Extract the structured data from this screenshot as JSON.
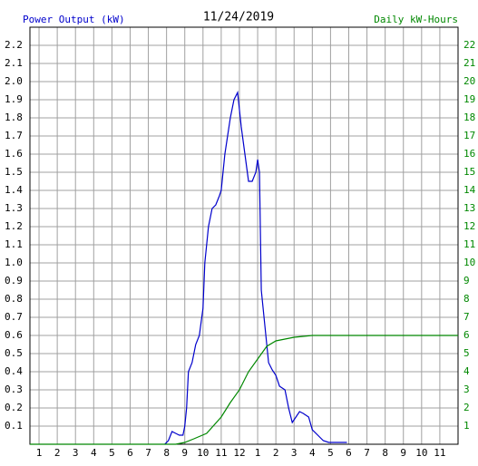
{
  "chart_data": {
    "type": "line",
    "title": "11/24/2019",
    "y_label": "Power Output (kW)",
    "y2_label": "Daily kW-Hours",
    "xlim": [
      0.5,
      24
    ],
    "xticks": [
      {
        "value": 1,
        "label": "1"
      },
      {
        "value": 2,
        "label": "2"
      },
      {
        "value": 3,
        "label": "3"
      },
      {
        "value": 4,
        "label": "4"
      },
      {
        "value": 5,
        "label": "5"
      },
      {
        "value": 6,
        "label": "6"
      },
      {
        "value": 7,
        "label": "7"
      },
      {
        "value": 8,
        "label": "8"
      },
      {
        "value": 9,
        "label": "9"
      },
      {
        "value": 10,
        "label": "10"
      },
      {
        "value": 11,
        "label": "11"
      },
      {
        "value": 12,
        "label": "12"
      },
      {
        "value": 13,
        "label": "1"
      },
      {
        "value": 14,
        "label": "2"
      },
      {
        "value": 15,
        "label": "3"
      },
      {
        "value": 16,
        "label": "4"
      },
      {
        "value": 17,
        "label": "5"
      },
      {
        "value": 18,
        "label": "6"
      },
      {
        "value": 19,
        "label": "7"
      },
      {
        "value": 20,
        "label": "8"
      },
      {
        "value": 21,
        "label": "9"
      },
      {
        "value": 22,
        "label": "10"
      },
      {
        "value": 23,
        "label": "11"
      }
    ],
    "ylim": [
      0,
      2.3
    ],
    "yticks": [
      0.1,
      0.2,
      0.3,
      0.4,
      0.5,
      0.6,
      0.7,
      0.8,
      0.9,
      {
        "value": 1,
        "label": "1.0"
      },
      1.1,
      1.2,
      1.3,
      1.4,
      1.5,
      1.6,
      1.7,
      1.8,
      1.9,
      {
        "value": 2,
        "label": "2.0"
      },
      2.1,
      2.2
    ],
    "y2lim": [
      0,
      23
    ],
    "y2ticks": [
      1,
      2,
      3,
      4,
      5,
      6,
      7,
      8,
      9,
      10,
      11,
      12,
      13,
      14,
      15,
      16,
      17,
      18,
      19,
      20,
      21,
      22
    ],
    "grid": true,
    "series": [
      {
        "name": "Power Output (kW)",
        "color": "#0000cc",
        "x": [
          7.9,
          8.1,
          8.3,
          8.5,
          8.7,
          8.9,
          9.0,
          9.1,
          9.2,
          9.4,
          9.6,
          9.8,
          10.0,
          10.1,
          10.3,
          10.5,
          10.7,
          10.9,
          11.0,
          11.2,
          11.5,
          11.7,
          11.9,
          12.1,
          12.3,
          12.5,
          12.7,
          12.9,
          13.0,
          13.1,
          13.2,
          13.4,
          13.6,
          13.8,
          14.0,
          14.2,
          14.5,
          14.7,
          14.9,
          15.1,
          15.3,
          15.5,
          15.8,
          16.0,
          16.3,
          16.6,
          16.9,
          17.2,
          17.9
        ],
        "values": [
          0,
          0.02,
          0.07,
          0.06,
          0.05,
          0.05,
          0.1,
          0.2,
          0.4,
          0.45,
          0.55,
          0.6,
          0.75,
          1.0,
          1.2,
          1.3,
          1.32,
          1.37,
          1.4,
          1.6,
          1.8,
          1.9,
          1.94,
          1.75,
          1.6,
          1.45,
          1.45,
          1.5,
          1.57,
          1.5,
          0.85,
          0.65,
          0.45,
          0.41,
          0.38,
          0.32,
          0.3,
          0.2,
          0.12,
          0.15,
          0.18,
          0.17,
          0.15,
          0.08,
          0.05,
          0.02,
          0.01,
          0.01,
          0.01
        ]
      },
      {
        "name": "Daily kW-Hours",
        "color": "#008800",
        "axis": "y2",
        "x": [
          0.5,
          8.5,
          9.0,
          9.5,
          10.2,
          11.0,
          11.5,
          12.0,
          12.5,
          13.0,
          13.5,
          14.0,
          14.5,
          15.0,
          16.0,
          24.0
        ],
        "values": [
          0,
          0,
          0.1,
          0.3,
          0.6,
          1.5,
          2.3,
          3.0,
          4.0,
          4.7,
          5.4,
          5.7,
          5.8,
          5.9,
          6.0,
          6.0
        ]
      }
    ]
  }
}
